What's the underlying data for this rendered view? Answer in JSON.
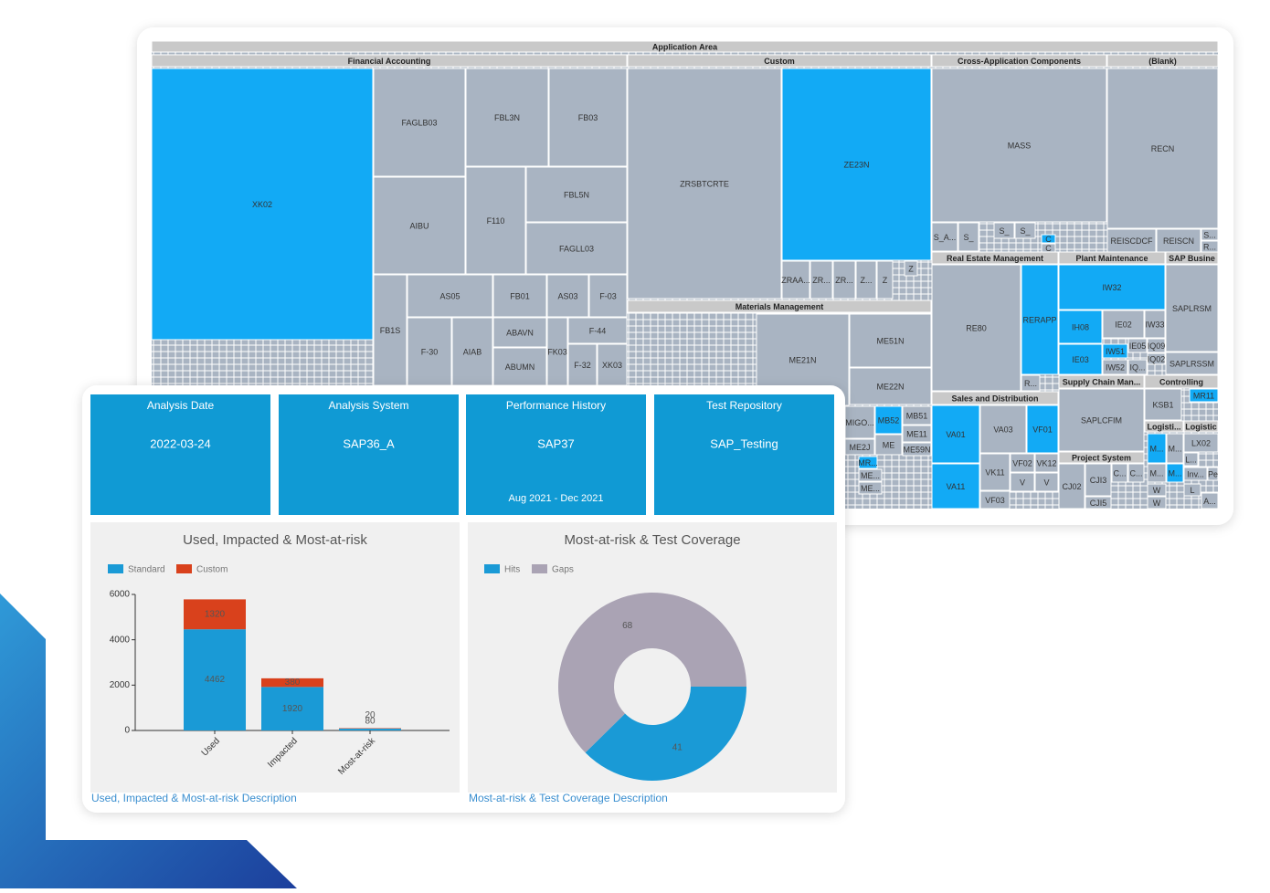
{
  "treemap": {
    "labels": [
      "Application Area",
      "Financial Accounting",
      "Custom",
      "Cross-Application Components",
      "(Blank)",
      "XK02",
      "FAGLB03",
      "FBL3N",
      "FB03",
      "AIBU",
      "F110",
      "FBL5N",
      "FAGLL03",
      "AS05",
      "FB01",
      "AS03",
      "F-03",
      "FB1S",
      "F-30",
      "AIAB",
      "ABAVN",
      "ABUMN",
      "FK03",
      "F-44",
      "F-32",
      "XK03",
      "ZRSBTCRTE",
      "ZE23N",
      "ZRAA...",
      "ZR...",
      "ZR...",
      "Z...",
      "Z",
      "Z",
      "Materials Management",
      "ME21N",
      "ME51N",
      "ME22N",
      "MIGO...",
      "MB52",
      "MB51",
      "ME11",
      "ME2J",
      "ME",
      "ME59N",
      "MR...",
      "ME...",
      "ME...",
      "MASS",
      "S_A...",
      "S_",
      "S_",
      "S_",
      "C",
      "C",
      "RECN",
      "REISCDCF",
      "REISCN",
      "S...",
      "R...",
      "Real Estate Management",
      "RE80",
      "RERAPP",
      "R...",
      "Plant Maintenance",
      "IW32",
      "IH08",
      "IE02",
      "IW33",
      "IE03",
      "IW51",
      "IE05",
      "IQ09",
      "IW52",
      "IQ...",
      "IQ02",
      "SAP Busine",
      "SAPLRSM",
      "SAPLRSSM",
      "Supply Chain Man...",
      "Controlling",
      "KSB1",
      "MR11",
      "Sales and Distribution",
      "VA01",
      "VA03",
      "VF01",
      "VA11",
      "VK11",
      "VF02",
      "VK12",
      "VF03",
      "V",
      "V",
      "SAPLCFIM",
      "Project System",
      "CJ02",
      "CJI3",
      "C...",
      "C...",
      "CJI5",
      "Logisti...",
      "Logistic",
      "M...",
      "M...",
      "LX02",
      "L...",
      "M...",
      "M...",
      "Inv...",
      "Pe",
      "W",
      "W",
      "L",
      "A..."
    ]
  },
  "tiles": [
    {
      "title": "Analysis Date",
      "value": "2022-03-24"
    },
    {
      "title": "Analysis System",
      "value": "SAP36_A"
    },
    {
      "title": "Performance History",
      "value": "SAP37",
      "period": "Aug 2021 - Dec 2021"
    },
    {
      "title": "Test Repository",
      "value": "SAP_Testing"
    }
  ],
  "chart_data": [
    {
      "type": "bar",
      "stacked": true,
      "title": "Used, Impacted & Most-at-risk",
      "categories": [
        "Used",
        "Impacted",
        "Most-at-risk"
      ],
      "series": [
        {
          "name": "Standard",
          "color": "#1a9ad6",
          "values": [
            4462,
            1920,
            80
          ]
        },
        {
          "name": "Custom",
          "color": "#d9411c",
          "values": [
            1320,
            380,
            20
          ]
        }
      ],
      "ylim": [
        0,
        6000
      ],
      "yticks": [
        0,
        2000,
        4000,
        6000
      ]
    },
    {
      "type": "pie",
      "donut": true,
      "title": "Most-at-risk & Test Coverage",
      "categories": [
        "Hits",
        "Gaps"
      ],
      "values": [
        41,
        68
      ],
      "colors": [
        "#1a9ad6",
        "#aaa3b4"
      ]
    }
  ],
  "links": [
    "Used, Impacted & Most-at-risk Description",
    "Most-at-risk & Test Coverage Description"
  ]
}
